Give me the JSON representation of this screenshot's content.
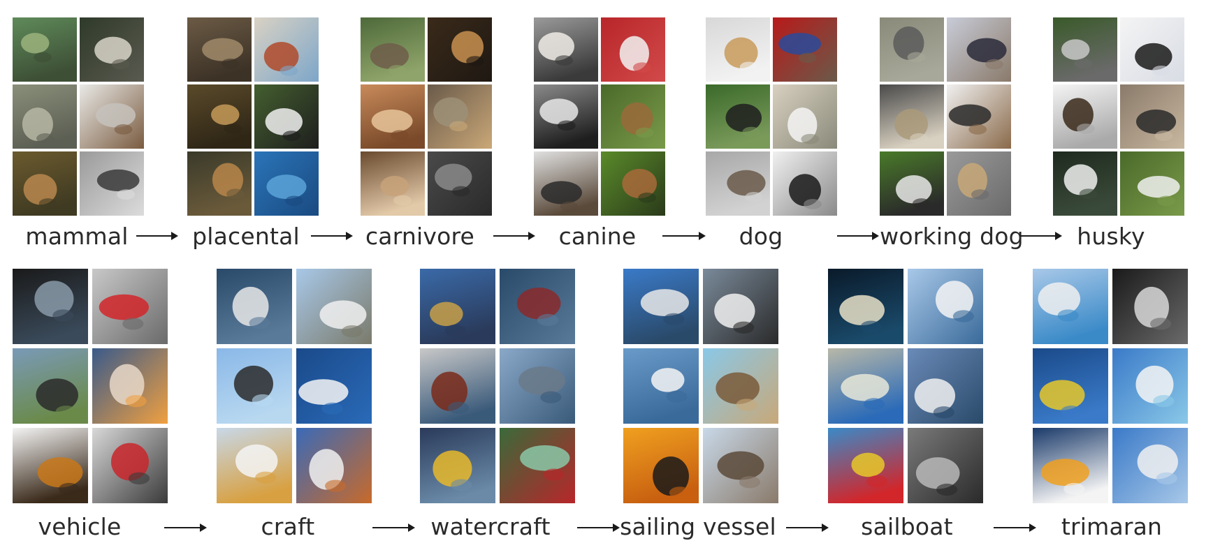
{
  "rows": [
    {
      "id": "animals",
      "groups": [
        {
          "label": "mammal",
          "thumbs": [
            "sea-lion-on-grass",
            "white-dog-closeup",
            "koala-on-tree",
            "squirrel-in-snow",
            "red-fox",
            "platypus-black-and-white"
          ],
          "colors": [
            [
              "#5f8a5a",
              "#9bb37c",
              "#3d4f35"
            ],
            [
              "#2f3a2a",
              "#d8d4c8",
              "#5a5a4f"
            ],
            [
              "#8a8f7a",
              "#b7b7a4",
              "#5c5f53"
            ],
            [
              "#e9e9e6",
              "#c5c2bc",
              "#7a5b40"
            ],
            [
              "#6b5a2e",
              "#b8874e",
              "#3f3a22"
            ],
            [
              "#9a9a9a",
              "#3a3a3a",
              "#dcdcdc"
            ]
          ]
        },
        {
          "label": "placental",
          "thumbs": [
            "monkey-in-tree",
            "person-on-beach",
            "leopard-face",
            "panda",
            "deer-antlers",
            "whale-underwater"
          ],
          "colors": [
            [
              "#6b5a45",
              "#a08a6a",
              "#3c3226"
            ],
            [
              "#d9d2c4",
              "#b04a2a",
              "#7da6c9"
            ],
            [
              "#5a4a2a",
              "#c69a58",
              "#2f2616"
            ],
            [
              "#445f2f",
              "#f0f0f0",
              "#1e1e1e"
            ],
            [
              "#3a3a2a",
              "#b8864a",
              "#6a5a3a"
            ],
            [
              "#2a74b8",
              "#5aa3d8",
              "#1a4a80"
            ]
          ]
        },
        {
          "label": "carnivore",
          "thumbs": [
            "hyena",
            "tabby-kitten",
            "fennec-foxes",
            "cheetah-on-rock",
            "sea-lion-pup",
            "cat-with-stripes"
          ],
          "colors": [
            [
              "#4e6a3a",
              "#6f5d4a",
              "#8fa46a"
            ],
            [
              "#3a2a1a",
              "#c89050",
              "#1e1812"
            ],
            [
              "#c88a5a",
              "#e7c49a",
              "#7a4a2a"
            ],
            [
              "#6a5a4a",
              "#9c9078",
              "#caa878"
            ],
            [
              "#6a4a2e",
              "#c8a27a",
              "#e2c9a8"
            ],
            [
              "#4a4a4a",
              "#8a8a8a",
              "#2a2a2a"
            ]
          ]
        },
        {
          "label": "canine",
          "thumbs": [
            "bulldog-puppy",
            "white-poodle",
            "husky-puppy",
            "brown-dog-in-grass",
            "rottweiler-puppy",
            "boxer-on-grass"
          ],
          "colors": [
            [
              "#9a9a9a",
              "#f0ece6",
              "#3a3a3a"
            ],
            [
              "#b8262a",
              "#f2f2f2",
              "#d24a4a"
            ],
            [
              "#8a8a8a",
              "#e8e8e8",
              "#1e1e1e"
            ],
            [
              "#4a6a2a",
              "#9a6a3a",
              "#7a9a4a"
            ],
            [
              "#e0e0e0",
              "#2a2a2a",
              "#5a4a3a"
            ],
            [
              "#5a8a2a",
              "#a86a3a",
              "#2a3a1a"
            ]
          ]
        },
        {
          "label": "dog",
          "thumbs": [
            "golden-puppy-in-snow",
            "pug-in-costume",
            "three-black-labs",
            "white-puppy",
            "terrier-walking",
            "black-puppy"
          ],
          "colors": [
            [
              "#d8d8d8",
              "#c89a5a",
              "#f2f2f2"
            ],
            [
              "#b81a1a",
              "#2a4a9a",
              "#6a5a4a"
            ],
            [
              "#3a6a2a",
              "#1e1e1e",
              "#7a9a5a"
            ],
            [
              "#d8d0c0",
              "#f4f4f4",
              "#8a8a7a"
            ],
            [
              "#a8a8a8",
              "#6a5a4a",
              "#d2d2d2"
            ],
            [
              "#f0f0f0",
              "#1a1a1a",
              "#8a8a8a"
            ]
          ]
        },
        {
          "label": "working dog",
          "thumbs": [
            "dog-in-jacket",
            "dog-lying-on-rug",
            "soldier-with-dog",
            "sled-dogs",
            "collie-on-grass",
            "dog-on-pavement"
          ],
          "colors": [
            [
              "#8a8a7a",
              "#5a5a5a",
              "#a8a89a"
            ],
            [
              "#c8ccd8",
              "#2a2a3a",
              "#8a7a6a"
            ],
            [
              "#4a4a4a",
              "#aa9a7a",
              "#d8d0c0"
            ],
            [
              "#f0f0f0",
              "#2a2a2a",
              "#8a6a4a"
            ],
            [
              "#4a7a2a",
              "#e8e8e8",
              "#2a2a2a"
            ],
            [
              "#9a9a9a",
              "#c8a878",
              "#6a6a6a"
            ]
          ]
        },
        {
          "label": "husky",
          "thumbs": [
            "husky-pack-running",
            "husky-sled-team-snow",
            "two-huskies-white",
            "husky-in-kennel",
            "husky-face",
            "white-husky-on-grass"
          ],
          "colors": [
            [
              "#3a5a2a",
              "#c8c8c8",
              "#6a6a6a"
            ],
            [
              "#f4f4f4",
              "#1a1a1a",
              "#d8dce4"
            ],
            [
              "#f4f4f4",
              "#3a2a1a",
              "#aaaaaa"
            ],
            [
              "#8a7a6a",
              "#2a2a2a",
              "#c8b8a0"
            ],
            [
              "#1e2a1e",
              "#f0f0f0",
              "#3a4a3a"
            ],
            [
              "#4a6a2a",
              "#f0f0f0",
              "#7a9a4a"
            ]
          ]
        }
      ],
      "arrow_count": 6
    },
    {
      "id": "vehicles",
      "groups": [
        {
          "label": "vehicle",
          "thumbs": [
            "sports-car",
            "city-bus",
            "chinook-helicopter",
            "rocket-launch",
            "tractor",
            "red-truck"
          ],
          "colors": [
            [
              "#1a1a1a",
              "#8a9aa8",
              "#3a4a5a"
            ],
            [
              "#c8c8c8",
              "#d2262a",
              "#6a6a6a"
            ],
            [
              "#7a9ab8",
              "#2a2a2a",
              "#6a8a4a"
            ],
            [
              "#3a5a8a",
              "#e8d8c8",
              "#f0a040"
            ],
            [
              "#f4f4f4",
              "#c8781a",
              "#3a2a1a"
            ],
            [
              "#d8d8d8",
              "#c8262a",
              "#3a3a3a"
            ]
          ]
        },
        {
          "label": "craft",
          "thumbs": [
            "hovercraft",
            "small-airplane",
            "helicopter-sky",
            "speedboat",
            "jet-ski",
            "space-shuttle"
          ],
          "colors": [
            [
              "#2a4a6a",
              "#e8e8e8",
              "#5a7a9a"
            ],
            [
              "#a8c8e8",
              "#f0f0f0",
              "#7a7a6a"
            ],
            [
              "#8ab8e8",
              "#2a2a2a",
              "#b8d8f0"
            ],
            [
              "#1a4a8a",
              "#f4f4f4",
              "#2a6ab8"
            ],
            [
              "#c8d8e8",
              "#f4f4f4",
              "#d8a040"
            ],
            [
              "#3a6ab8",
              "#f0f0f0",
              "#c86a2a"
            ]
          ]
        },
        {
          "label": "watercraft",
          "thumbs": [
            "cargo-ship-skyline",
            "container-ship",
            "sailboats-harbor",
            "warship",
            "tugboat",
            "canoe"
          ],
          "colors": [
            [
              "#3a6aa8",
              "#c8a048",
              "#2a3a5a"
            ],
            [
              "#2a4a6a",
              "#8a2a2a",
              "#5a7a9a"
            ],
            [
              "#c8c8c8",
              "#7a2a1a",
              "#3a5a7a"
            ],
            [
              "#8aa8c8",
              "#6a7a8a",
              "#3a5a7a"
            ],
            [
              "#2a3a5a",
              "#e8b82a",
              "#6a8aa8"
            ],
            [
              "#3a6a3a",
              "#8ac8a8",
              "#b8262a"
            ]
          ]
        },
        {
          "label": "sailing vessel",
          "thumbs": [
            "tall-ship-at-dock",
            "racing-yacht",
            "distant-sailboat",
            "galleon-model",
            "sunset-masts",
            "old-schooner"
          ],
          "colors": [
            [
              "#3a7ac8",
              "#e8e8e8",
              "#2a4a6a"
            ],
            [
              "#7a8a9a",
              "#f0f0f0",
              "#2a2a2a"
            ],
            [
              "#6a9ac8",
              "#f4f4f4",
              "#3a6a9a"
            ],
            [
              "#8ac8e8",
              "#7a5a3a",
              "#c8a878"
            ],
            [
              "#f0a020",
              "#1a1a1a",
              "#c86010"
            ],
            [
              "#c8d8e8",
              "#5a4a3a",
              "#8a7a6a"
            ]
          ]
        },
        {
          "label": "sailboat",
          "thumbs": [
            "yacht-at-night",
            "sailboats-statue-of-liberty",
            "windsurfer",
            "sailboat-mountain",
            "colorful-sails",
            "sailboat-gray-sea"
          ],
          "colors": [
            [
              "#0a1a2a",
              "#e8e0c8",
              "#1a4a6a"
            ],
            [
              "#a8c8e8",
              "#f4f4f4",
              "#3a6a9a"
            ],
            [
              "#b8b8a8",
              "#e8e8d8",
              "#2a6ab8"
            ],
            [
              "#6a8ab8",
              "#f0f0f0",
              "#2a4a6a"
            ],
            [
              "#3a8ac8",
              "#e8c82a",
              "#d2262a"
            ],
            [
              "#7a7a7a",
              "#b8b8b8",
              "#2a2a2a"
            ]
          ]
        },
        {
          "label": "trimaran",
          "thumbs": [
            "trimaran-blue-sails",
            "trimaran-top-view",
            "trimaran-racing",
            "trimaran-anchored",
            "trimaran-sunset",
            "trimaran-crew"
          ],
          "colors": [
            [
              "#a8c8e8",
              "#f0f0f0",
              "#3a8ac8"
            ],
            [
              "#1a1a1a",
              "#d8d8d8",
              "#6a6a6a"
            ],
            [
              "#1a4a8a",
              "#e8c82a",
              "#3a7ac8"
            ],
            [
              "#3a7ac8",
              "#f4f4f4",
              "#8ac8e8"
            ],
            [
              "#1a3a6a",
              "#f0a020",
              "#f4f4f4"
            ],
            [
              "#3a7ac8",
              "#f0f0f0",
              "#a8c8e8"
            ]
          ]
        }
      ],
      "arrow_count": 5
    }
  ]
}
